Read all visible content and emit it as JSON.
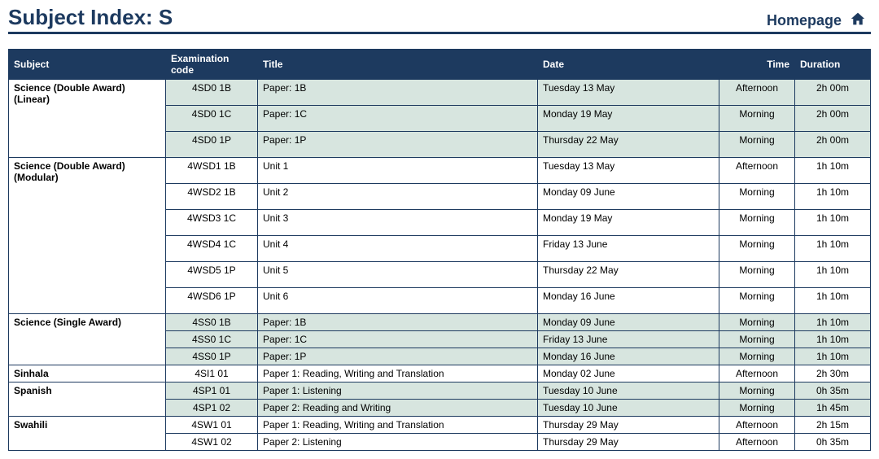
{
  "header": {
    "title": "Subject Index: S",
    "homepage_label": "Homepage"
  },
  "columns": [
    "Subject",
    "Examination code",
    "Title",
    "Date",
    "Time",
    "Duration"
  ],
  "rows": [
    {
      "subject": "Science (Double Award) (Linear)",
      "code": "4SD0 1B",
      "title": "Paper: 1B",
      "date": "Tuesday 13 May",
      "time": "Afternoon",
      "dur": "2h 00m",
      "shade": true,
      "pad": true,
      "rowspan": 3
    },
    {
      "subject": "",
      "code": "4SD0 1C",
      "title": "Paper: 1C",
      "date": "Monday 19 May",
      "time": "Morning",
      "dur": "2h 00m",
      "shade": true,
      "pad": true
    },
    {
      "subject": "",
      "code": "4SD0 1P",
      "title": "Paper: 1P",
      "date": "Thursday 22 May",
      "time": "Morning",
      "dur": "2h 00m",
      "shade": true,
      "pad": true
    },
    {
      "subject": "Science (Double Award) (Modular)",
      "code": "4WSD1 1B",
      "title": "Unit 1",
      "date": "Tuesday 13 May",
      "time": "Afternoon",
      "dur": "1h 10m",
      "shade": false,
      "pad": true,
      "rowspan": 6
    },
    {
      "subject": "",
      "code": "4WSD2 1B",
      "title": "Unit 2",
      "date": "Monday 09 June",
      "time": "Morning",
      "dur": "1h 10m",
      "shade": false,
      "pad": true
    },
    {
      "subject": "",
      "code": "4WSD3 1C",
      "title": "Unit 3",
      "date": "Monday 19 May",
      "time": "Morning",
      "dur": "1h 10m",
      "shade": false,
      "pad": true
    },
    {
      "subject": "",
      "code": "4WSD4 1C",
      "title": "Unit 4",
      "date": "Friday 13 June",
      "time": "Morning",
      "dur": "1h 10m",
      "shade": false,
      "pad": true
    },
    {
      "subject": "",
      "code": "4WSD5 1P",
      "title": "Unit 5",
      "date": "Thursday 22 May",
      "time": "Morning",
      "dur": "1h 10m",
      "shade": false,
      "pad": true
    },
    {
      "subject": "",
      "code": "4WSD6 1P",
      "title": "Unit 6",
      "date": "Monday 16 June",
      "time": "Morning",
      "dur": "1h 10m",
      "shade": false,
      "pad": true
    },
    {
      "subject": "Science (Single Award)",
      "code": "4SS0 1B",
      "title": "Paper: 1B",
      "date": "Monday 09 June",
      "time": "Morning",
      "dur": "1h 10m",
      "shade": true,
      "pad": false,
      "rowspan": 3
    },
    {
      "subject": "",
      "code": "4SS0 1C",
      "title": "Paper: 1C",
      "date": "Friday 13 June",
      "time": "Morning",
      "dur": "1h 10m",
      "shade": true,
      "pad": false
    },
    {
      "subject": "",
      "code": "4SS0 1P",
      "title": "Paper: 1P",
      "date": "Monday 16 June",
      "time": "Morning",
      "dur": "1h 10m",
      "shade": true,
      "pad": false
    },
    {
      "subject": "Sinhala",
      "code": "4SI1 01",
      "title": "Paper 1: Reading, Writing and Translation",
      "date": "Monday 02 June",
      "time": "Afternoon",
      "dur": "2h 30m",
      "shade": false,
      "pad": false,
      "rowspan": 1
    },
    {
      "subject": "Spanish",
      "code": "4SP1 01",
      "title": "Paper 1: Listening",
      "date": "Tuesday 10 June",
      "time": "Morning",
      "dur": "0h 35m",
      "shade": true,
      "pad": false,
      "rowspan": 2
    },
    {
      "subject": "",
      "code": "4SP1 02",
      "title": "Paper 2: Reading and Writing",
      "date": "Tuesday 10 June",
      "time": "Morning",
      "dur": "1h 45m",
      "shade": true,
      "pad": false
    },
    {
      "subject": "Swahili",
      "code": "4SW1 01",
      "title": "Paper 1: Reading, Writing and Translation",
      "date": "Thursday 29 May",
      "time": "Afternoon",
      "dur": "2h 15m",
      "shade": false,
      "pad": false,
      "rowspan": 2
    },
    {
      "subject": "",
      "code": "4SW1 02",
      "title": "Paper 2: Listening",
      "date": "Thursday 29 May",
      "time": "Afternoon",
      "dur": "0h 35m",
      "shade": false,
      "pad": false
    }
  ],
  "styles": {
    "header_color": "#1d3a5f",
    "shade_color": "#d7e5df",
    "rule_color": "#1d3a5f"
  }
}
